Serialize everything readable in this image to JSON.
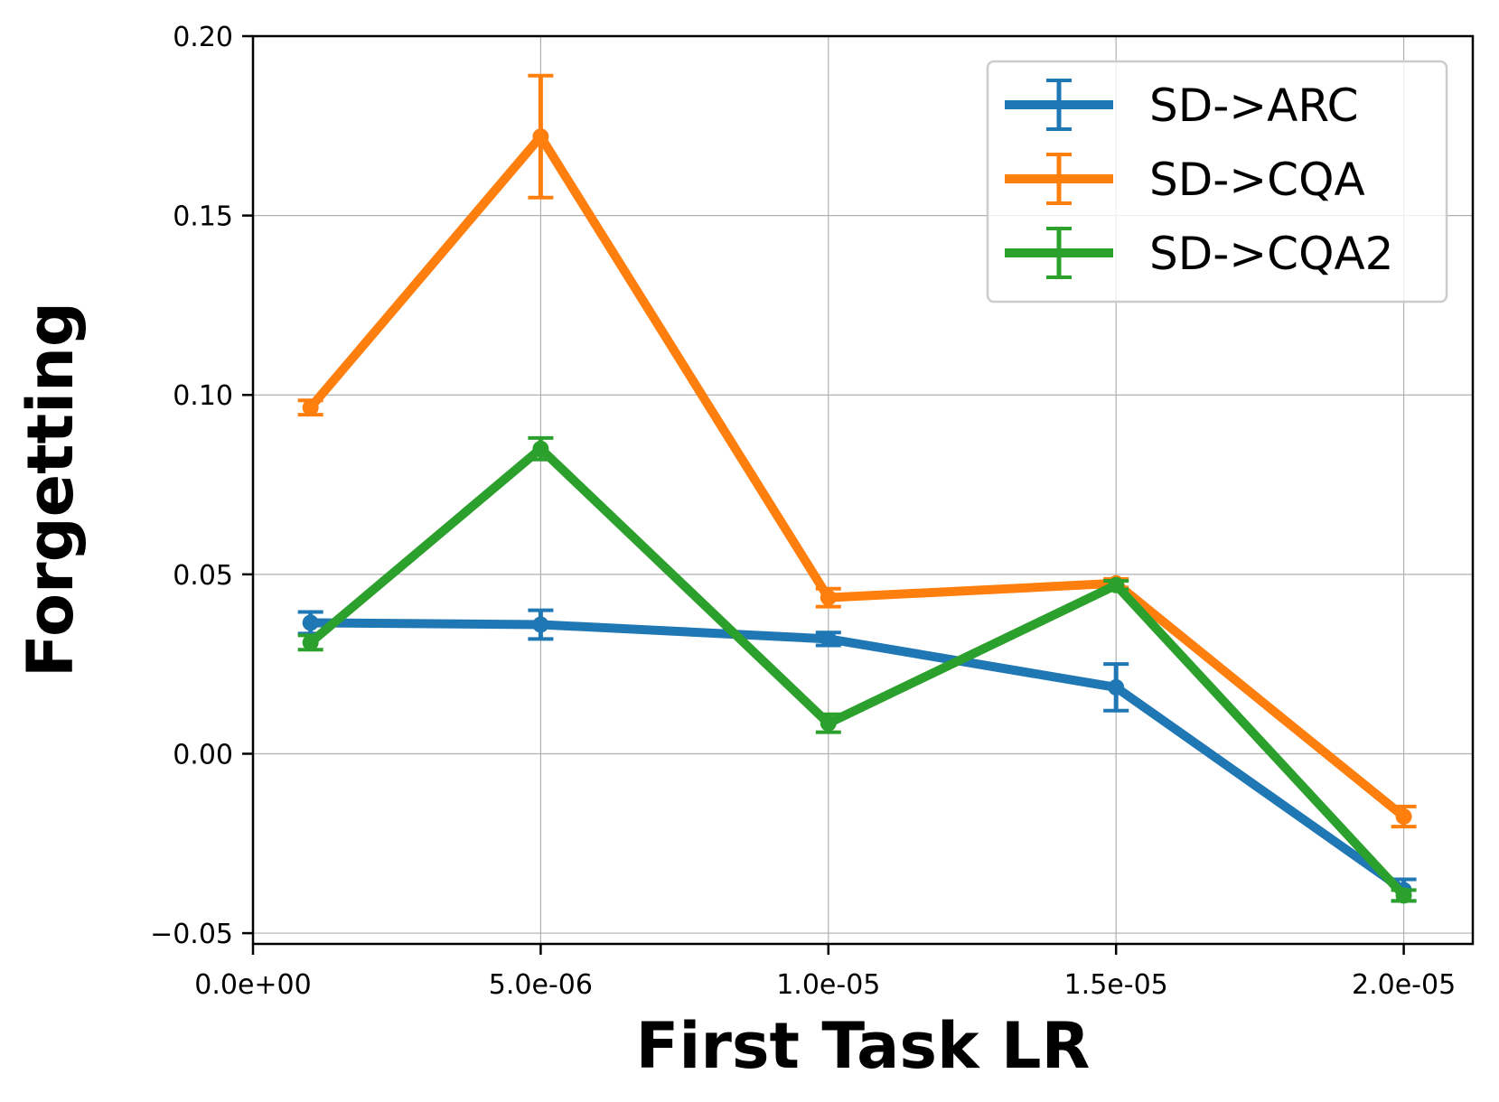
{
  "chart_data": {
    "type": "line",
    "title": "",
    "xlabel": "First Task LR",
    "ylabel": "Forgetting",
    "xlim": [
      0,
      2.12e-05
    ],
    "ylim": [
      -0.053,
      0.2
    ],
    "grid": true,
    "legend_position": "top-right",
    "x_ticks": [
      {
        "value": 0,
        "label": "0.0e+00"
      },
      {
        "value": 5e-06,
        "label": "5.0e-06"
      },
      {
        "value": 1e-05,
        "label": "1.0e-05"
      },
      {
        "value": 1.5e-05,
        "label": "1.5e-05"
      },
      {
        "value": 2e-05,
        "label": "2.0e-05"
      }
    ],
    "y_ticks": [
      {
        "value": 0.2,
        "label": "0.20"
      },
      {
        "value": 0.15,
        "label": "0.15"
      },
      {
        "value": 0.1,
        "label": "0.10"
      },
      {
        "value": 0.05,
        "label": "0.05"
      },
      {
        "value": 0.0,
        "label": "0.00"
      },
      {
        "value": -0.05,
        "label": "−0.05"
      }
    ],
    "x": [
      1e-06,
      5e-06,
      1e-05,
      1.5e-05,
      2e-05
    ],
    "series": [
      {
        "name": "SD->ARC",
        "color": "#1f77b4",
        "values": [
          0.0365,
          0.036,
          0.032,
          0.0185,
          -0.038
        ],
        "errors": [
          0.003,
          0.004,
          0.0018,
          0.0065,
          0.003
        ]
      },
      {
        "name": "SD->CQA",
        "color": "#ff7f0e",
        "values": [
          0.0965,
          0.172,
          0.0435,
          0.0475,
          -0.0175
        ],
        "errors": [
          0.002,
          0.017,
          0.0025,
          0.0012,
          0.0028
        ]
      },
      {
        "name": "SD->CQA2",
        "color": "#2ca02c",
        "values": [
          0.031,
          0.085,
          0.0085,
          0.047,
          -0.0395
        ],
        "errors": [
          0.002,
          0.003,
          0.0025,
          0.0012,
          0.0015
        ]
      }
    ]
  }
}
